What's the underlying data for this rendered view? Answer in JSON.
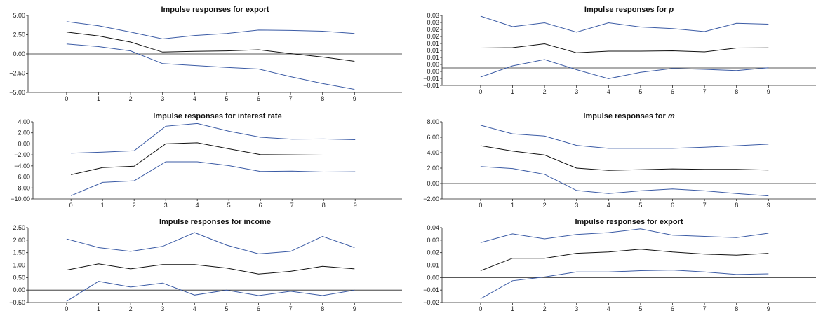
{
  "chart_data": [
    {
      "type": "line",
      "title": "Impulse responses for export",
      "x": [
        0,
        1,
        2,
        3,
        4,
        5,
        6,
        7,
        8,
        9
      ],
      "ylim": [
        -5.0,
        5.0
      ],
      "yticks": [
        "5.00",
        "2.50",
        "0.00",
        "−2.50",
        "−5.00"
      ],
      "ytick_values": [
        5.0,
        2.5,
        0.0,
        -2.5,
        -5.0
      ],
      "xticks": [
        "0",
        "1",
        "2",
        "3",
        "4",
        "5",
        "6",
        "7",
        "8",
        "9"
      ],
      "zero_line": true,
      "series": [
        {
          "values": [
            4.2,
            3.65,
            2.85,
            1.95,
            2.4,
            2.65,
            3.1,
            3.05,
            2.95,
            2.65
          ],
          "color": "#3b5ba5"
        },
        {
          "values": [
            2.85,
            2.35,
            1.55,
            0.25,
            0.35,
            0.4,
            0.55,
            0.05,
            -0.4,
            -0.95
          ],
          "color": "#111111"
        },
        {
          "values": [
            1.3,
            0.95,
            0.4,
            -1.25,
            -1.5,
            -1.75,
            -1.95,
            -2.95,
            -3.85,
            -4.6
          ],
          "color": "#3b5ba5"
        }
      ]
    },
    {
      "type": "line",
      "title": "Impulse responses for p",
      "title_italic_word": "p",
      "x": [
        0,
        1,
        2,
        3,
        4,
        5,
        6,
        7,
        8,
        9
      ],
      "ylim": [
        -0.01,
        0.03
      ],
      "yticks": [
        "0.03",
        "0.03",
        "0.02",
        "0.02",
        "0.01",
        "0.01",
        "0.01",
        "0.00",
        "0.00",
        "−0.01",
        "−0.01"
      ],
      "ytick_values": [
        0.03,
        0.026,
        0.022,
        0.018,
        0.014,
        0.01,
        0.006,
        0.002,
        -0.002,
        -0.006,
        -0.01
      ],
      "xticks": [
        "0",
        "1",
        "2",
        "3",
        "4",
        "5",
        "6",
        "7",
        "8",
        "9"
      ],
      "zero_line": true,
      "series": [
        {
          "values": [
            0.0296,
            0.0236,
            0.0258,
            0.0205,
            0.0258,
            0.0234,
            0.0225,
            0.0208,
            0.0255,
            0.025
          ],
          "color": "#3b5ba5"
        },
        {
          "values": [
            0.0114,
            0.0116,
            0.0138,
            0.0087,
            0.0096,
            0.0096,
            0.0098,
            0.0092,
            0.0114,
            0.0115
          ],
          "color": "#111111"
        },
        {
          "values": [
            -0.0052,
            0.0012,
            0.0048,
            -0.001,
            -0.0061,
            -0.0025,
            -0.0003,
            -0.0008,
            -0.0015,
            0.0001
          ],
          "color": "#3b5ba5"
        }
      ]
    },
    {
      "type": "line",
      "title": "Impulse responses for interest rate",
      "x": [
        0,
        1,
        2,
        3,
        4,
        5,
        6,
        7,
        8,
        9
      ],
      "ylim": [
        -10.0,
        4.0
      ],
      "yticks": [
        "4.00",
        "2.00",
        "0.00",
        "−2.00",
        "−4.00",
        "−6.00",
        "−8.00",
        "−10.00"
      ],
      "ytick_values": [
        4.0,
        2.0,
        0.0,
        -2.0,
        -4.0,
        -6.0,
        -8.0,
        -10.0
      ],
      "xticks": [
        "0",
        "1",
        "2",
        "3",
        "4",
        "5",
        "6",
        "7",
        "8",
        "9"
      ],
      "zero_line": true,
      "series": [
        {
          "values": [
            -1.7,
            -1.5,
            -1.25,
            3.2,
            3.7,
            2.3,
            1.2,
            0.85,
            0.9,
            0.75
          ],
          "color": "#3b5ba5"
        },
        {
          "values": [
            -5.6,
            -4.3,
            -4.05,
            0.0,
            0.2,
            -0.9,
            -1.95,
            -2.0,
            -2.05,
            -2.05
          ],
          "color": "#111111"
        },
        {
          "values": [
            -9.4,
            -7.0,
            -6.7,
            -3.25,
            -3.25,
            -3.95,
            -5.0,
            -4.95,
            -5.1,
            -5.05
          ],
          "color": "#3b5ba5"
        }
      ]
    },
    {
      "type": "line",
      "title": "Impulse responses for m",
      "title_italic_word": "m",
      "x": [
        0,
        1,
        2,
        3,
        4,
        5,
        6,
        7,
        8,
        9
      ],
      "ylim": [
        -2.0,
        8.0
      ],
      "yticks": [
        "8.00",
        "6.00",
        "4.00",
        "2.00",
        "0.00",
        "−2.00"
      ],
      "ytick_values": [
        8.0,
        6.0,
        4.0,
        2.0,
        0.0,
        -2.0
      ],
      "xticks": [
        "0",
        "1",
        "2",
        "3",
        "4",
        "5",
        "6",
        "7",
        "8",
        "9"
      ],
      "zero_line": true,
      "series": [
        {
          "values": [
            7.55,
            6.45,
            6.15,
            4.95,
            4.55,
            4.55,
            4.55,
            4.7,
            4.9,
            5.1
          ],
          "color": "#3b5ba5"
        },
        {
          "values": [
            4.9,
            4.2,
            3.7,
            2.0,
            1.7,
            1.8,
            1.9,
            1.85,
            1.85,
            1.75
          ],
          "color": "#111111"
        },
        {
          "values": [
            2.2,
            1.95,
            1.2,
            -0.9,
            -1.3,
            -0.95,
            -0.7,
            -0.95,
            -1.3,
            -1.6
          ],
          "color": "#3b5ba5"
        }
      ]
    },
    {
      "type": "line",
      "title": "Impulse responses for income",
      "x": [
        0,
        1,
        2,
        3,
        4,
        5,
        6,
        7,
        8,
        9
      ],
      "ylim": [
        -0.5,
        2.5
      ],
      "yticks": [
        "2.50",
        "2.00",
        "1.50",
        "1.00",
        "0.50",
        "0.00",
        "−0.50"
      ],
      "ytick_values": [
        2.5,
        2.0,
        1.5,
        1.0,
        0.5,
        0.0,
        -0.5
      ],
      "xticks": [
        "0",
        "1",
        "2",
        "3",
        "4",
        "5",
        "6",
        "7",
        "8",
        "9"
      ],
      "zero_line": true,
      "series": [
        {
          "values": [
            2.05,
            1.7,
            1.55,
            1.75,
            2.3,
            1.8,
            1.45,
            1.55,
            2.15,
            1.7
          ],
          "color": "#3b5ba5"
        },
        {
          "values": [
            0.8,
            1.05,
            0.85,
            1.02,
            1.02,
            0.88,
            0.64,
            0.75,
            0.95,
            0.85
          ],
          "color": "#111111"
        },
        {
          "values": [
            -0.45,
            0.35,
            0.12,
            0.28,
            -0.2,
            0.0,
            -0.22,
            -0.05,
            -0.22,
            0.0
          ],
          "color": "#3b5ba5"
        }
      ]
    },
    {
      "type": "line",
      "title": "Impulse responses for export",
      "x": [
        0,
        1,
        2,
        3,
        4,
        5,
        6,
        7,
        8,
        9
      ],
      "ylim": [
        -0.02,
        0.04
      ],
      "yticks": [
        "0.04",
        "0.03",
        "0.02",
        "0.01",
        "0.00",
        "−0.01",
        "−0.02"
      ],
      "ytick_values": [
        0.04,
        0.03,
        0.02,
        0.01,
        0.0,
        -0.01,
        -0.02
      ],
      "xticks": [
        "0",
        "1",
        "2",
        "3",
        "4",
        "5",
        "6",
        "7",
        "8",
        "9"
      ],
      "zero_line": true,
      "series": [
        {
          "values": [
            0.028,
            0.035,
            0.031,
            0.0345,
            0.036,
            0.039,
            0.034,
            0.033,
            0.032,
            0.0355
          ],
          "color": "#3b5ba5"
        },
        {
          "values": [
            0.0055,
            0.0155,
            0.0155,
            0.0195,
            0.0205,
            0.0228,
            0.0205,
            0.0188,
            0.018,
            0.0195
          ],
          "color": "#111111"
        },
        {
          "values": [
            -0.017,
            -0.0025,
            0.0005,
            0.0045,
            0.0045,
            0.0055,
            0.006,
            0.0045,
            0.0025,
            0.003
          ],
          "color": "#3b5ba5"
        }
      ]
    }
  ]
}
